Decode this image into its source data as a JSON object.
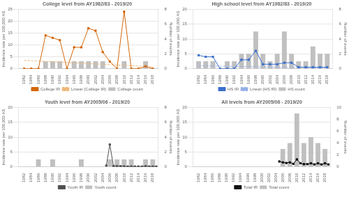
{
  "chart_data": [
    {
      "type": "bar",
      "title": "College level from AY1982/83 - 2019/20",
      "ylabel": "Incidence rate per 100,000 AS",
      "y2label": "Number of events",
      "xlim": [
        1980.5,
        2019.5
      ],
      "xticks": [
        1982,
        1984,
        1986,
        1988,
        1990,
        1992,
        1994,
        1996,
        1998,
        2000,
        2002,
        2004,
        2006,
        2008,
        2010,
        2012,
        2014,
        2016,
        2018
      ],
      "ylim": [
        0,
        25
      ],
      "yticks": [
        0,
        5,
        10,
        15,
        20,
        25
      ],
      "y2lim": [
        0,
        8
      ],
      "y2ticks": [
        0,
        2,
        4,
        6,
        8
      ],
      "grid": "y",
      "legend": "bottom",
      "series": [
        {
          "name": "College count",
          "type": "bar",
          "color": "#c0c0c0",
          "axis": "y2",
          "x": [
            1982,
            1984,
            1986,
            1988,
            1990,
            1992,
            1994,
            1996,
            1998,
            2000,
            2002,
            2004,
            2006,
            2008,
            2010,
            2012,
            2014,
            2016,
            2018
          ],
          "values": [
            0,
            0,
            0,
            1,
            1,
            1,
            0,
            1,
            1,
            1,
            1,
            1,
            0,
            0,
            1,
            0,
            0,
            1,
            0
          ]
        },
        {
          "name": "College IR",
          "type": "line",
          "color": "#d4670a",
          "marker": "square",
          "x": [
            1982,
            1984,
            1986,
            1988,
            1990,
            1992,
            1994,
            1996,
            1998,
            2000,
            2002,
            2004,
            2006,
            2008,
            2010,
            2012,
            2014,
            2016,
            2018
          ],
          "values": [
            0,
            0,
            0,
            14,
            13,
            12,
            0,
            9,
            9,
            17,
            16,
            7,
            3,
            0,
            24,
            0,
            0,
            1,
            0
          ]
        },
        {
          "name": "Linear (College IR)",
          "type": "line",
          "color": "#f0b87a",
          "line_style": "dashed",
          "x": [
            1982,
            1984,
            1986,
            1988,
            1990,
            1992,
            1994,
            1996,
            1998,
            2000,
            2002,
            2004,
            2006,
            2008,
            2010,
            2012,
            2014,
            2016,
            2018
          ],
          "values": [
            3.5,
            3.35,
            3.2,
            3.05,
            2.9,
            2.75,
            2.6,
            2.45,
            2.3,
            2.15,
            2.0,
            1.85,
            1.7,
            1.55,
            1.4,
            1.25,
            1.1,
            0.95,
            0.8
          ]
        }
      ]
    },
    {
      "type": "bar",
      "title": "High school level from AY1982/83 - 2019/20",
      "ylabel": "Incidence rate per 100,000 AS",
      "y2label": "Number of events",
      "xlim": [
        1980.5,
        2019.5
      ],
      "xticks": [
        1982,
        1984,
        1986,
        1988,
        1990,
        1992,
        1994,
        1996,
        1998,
        2000,
        2002,
        2004,
        2006,
        2008,
        2010,
        2012,
        2014,
        2016,
        2018
      ],
      "ylim": [
        0,
        20
      ],
      "yticks": [
        0,
        5,
        10,
        15,
        20
      ],
      "y2lim": [
        0,
        8
      ],
      "y2ticks": [
        0,
        2,
        4,
        6,
        8
      ],
      "grid": "y",
      "legend": "bottom",
      "series": [
        {
          "name": "HS count",
          "type": "bar",
          "color": "#c0c0c0",
          "axis": "y2",
          "x": [
            1982,
            1984,
            1986,
            1988,
            1990,
            1992,
            1994,
            1996,
            1998,
            2000,
            2002,
            2004,
            2006,
            2008,
            2010,
            2012,
            2014,
            2016,
            2018
          ],
          "values": [
            1,
            1,
            1,
            0,
            1,
            1,
            2,
            2,
            5,
            2,
            1,
            2,
            5,
            2,
            1,
            1,
            3,
            2,
            2
          ]
        },
        {
          "name": "HS IR",
          "type": "line",
          "color": "#3b6fcc",
          "marker": "square",
          "x": [
            1982,
            1984,
            1986,
            1988,
            1990,
            1992,
            1994,
            1996,
            1998,
            2000,
            2002,
            2004,
            2006,
            2008,
            2010,
            2012,
            2014,
            2016,
            2018
          ],
          "values": [
            4.5,
            4.0,
            4.0,
            0,
            0,
            0,
            3.0,
            3.0,
            6.0,
            1.5,
            1.5,
            1.5,
            2.0,
            2.0,
            0.5,
            0.5,
            0.5,
            0.5,
            0.5
          ]
        },
        {
          "name": "Linear (HS IR)",
          "type": "line",
          "color": "#95b0e8",
          "line_style": "dashed",
          "x": [
            1982,
            1984,
            1986,
            1988,
            1990,
            1992,
            1994,
            1996,
            1998,
            2000,
            2002,
            2004,
            2006,
            2008,
            2010,
            2012,
            2014,
            2016,
            2018
          ],
          "values": [
            1.0,
            0.9555556,
            0.9111111,
            0.8666667,
            0.8222222,
            0.7777778,
            0.7333333,
            0.6888889,
            0.6444444,
            0.6,
            0.5555556,
            0.5111111,
            0.4666667,
            0.4222222,
            0.3777778,
            0.3333333,
            0.2888889,
            0.2444444,
            0.2
          ]
        }
      ]
    },
    {
      "type": "bar",
      "title": "Youth level from AY2005/06 - 2019/20",
      "ylabel": "Incidence rate per 100,000 AS",
      "y2label": "Number of events",
      "xlim": [
        1980.5,
        2019.5
      ],
      "xticks": [
        1982,
        1984,
        1986,
        1988,
        1990,
        1992,
        1994,
        1996,
        1998,
        2000,
        2002,
        2004,
        2006,
        2008,
        2010,
        2012,
        2014,
        2016,
        2018
      ],
      "ylim": [
        0,
        20
      ],
      "yticks": [
        0,
        5,
        10,
        15,
        20
      ],
      "y2lim": [
        0,
        8
      ],
      "y2ticks": [
        0,
        2,
        4,
        6,
        8
      ],
      "grid": "y",
      "legend": "bottom",
      "series": [
        {
          "name": "Youth count",
          "type": "bar",
          "color": "#c0c0c0",
          "axis": "y2",
          "x": [
            1982,
            1984,
            1986,
            1988,
            1990,
            1992,
            1994,
            1996,
            1998,
            2000,
            2002,
            2004,
            2006,
            2008,
            2010,
            2012,
            2014,
            2016,
            2018
          ],
          "values": [
            0,
            0,
            1,
            0,
            1,
            0,
            0,
            0,
            1,
            0,
            0,
            0,
            1,
            1,
            1,
            1,
            0,
            1,
            1
          ]
        },
        {
          "name": "Youth IR",
          "type": "line",
          "color": "#505050",
          "marker": "square",
          "x": [
            2005,
            2006,
            2007,
            2008,
            2009,
            2010,
            2011,
            2012,
            2013,
            2014,
            2015,
            2016,
            2017,
            2018,
            2019
          ],
          "values": [
            0.4,
            7.5,
            0.3,
            0.2,
            0.2,
            0.15,
            0.1,
            0.1,
            0.1,
            0.1,
            0.1,
            0.2,
            0.1,
            0.1,
            0.1
          ]
        }
      ]
    },
    {
      "type": "bar",
      "title": "All levels from AY2005/06 - 2019/20",
      "ylabel": "Incidence rate per 100,000 AS",
      "y2label": "Number of events",
      "xlim": [
        1980.5,
        2019.5
      ],
      "xticks": [
        1982,
        1984,
        1986,
        1988,
        1990,
        1992,
        1994,
        1996,
        1998,
        2000,
        2002,
        2004,
        2006,
        2008,
        2010,
        2012,
        2014,
        2016,
        2018
      ],
      "ylim": [
        0,
        20
      ],
      "yticks": [
        0,
        5,
        10,
        15,
        20
      ],
      "y2lim": [
        0,
        10
      ],
      "y2ticks": [
        0,
        2,
        4,
        6,
        8,
        10
      ],
      "grid": "y",
      "legend": "bottom",
      "series": [
        {
          "name": "Total count",
          "type": "bar",
          "color": "#c0c0c0",
          "axis": "y2",
          "x": [
            1982,
            1984,
            1986,
            1988,
            1990,
            1992,
            1994,
            1996,
            1998,
            2000,
            2002,
            2004,
            2006,
            2008,
            2010,
            2012,
            2014,
            2016,
            2018
          ],
          "values": [
            0,
            0,
            0,
            0,
            0,
            0,
            0,
            0,
            0,
            0,
            0,
            0,
            3,
            4,
            9,
            4,
            5,
            4,
            3
          ]
        },
        {
          "name": "Total IR",
          "type": "line",
          "color": "#101010",
          "marker": "square",
          "x": [
            2005,
            2006,
            2007,
            2008,
            2009,
            2010,
            2011,
            2012,
            2013,
            2014,
            2015,
            2016,
            2017,
            2018,
            2019
          ],
          "values": [
            1.8,
            1.5,
            1.3,
            1.5,
            1.0,
            2.5,
            1.2,
            0.9,
            0.9,
            1.2,
            0.8,
            1.2,
            0.8,
            1.2,
            0.8
          ]
        }
      ]
    }
  ]
}
